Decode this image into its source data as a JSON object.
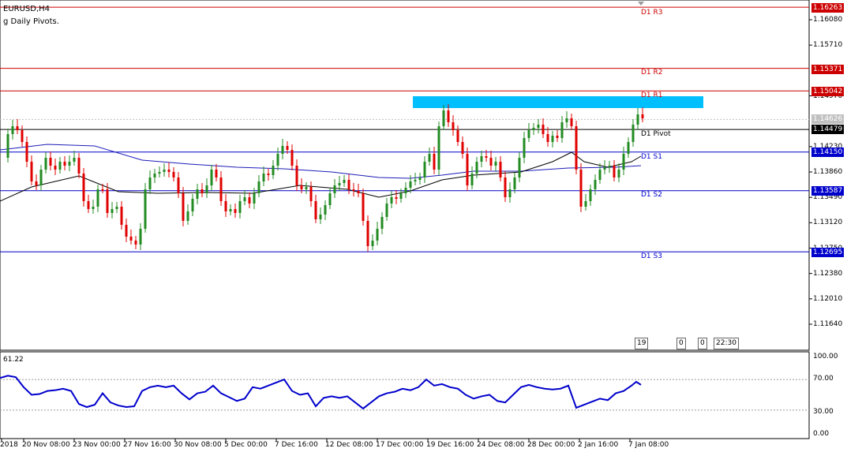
{
  "header": {
    "symbol": "EURUSD,H4",
    "indicator": "g Daily Pivots."
  },
  "colors": {
    "bull": "#228B22",
    "bear": "#E00000",
    "pivot_resistance": "#CC0000",
    "pivot_support": "#0000CC",
    "pivot_main": "#000000",
    "ma_slow": "#1C1CB8",
    "ma_fast": "#000000",
    "highlight_zone": "#00BFFF",
    "oscillator": "#0000CC"
  },
  "price_axis": {
    "ticks": [
      "1.16080",
      "1.15710",
      "1.14970",
      "1.14230",
      "1.13860",
      "1.13490",
      "1.13120",
      "1.12750",
      "1.12380",
      "1.12010",
      "1.11640"
    ]
  },
  "pivots": [
    {
      "name": "D1 R3",
      "price": "1.16263",
      "type": "resistance"
    },
    {
      "name": "D1 R2",
      "price": "1.15371",
      "type": "resistance"
    },
    {
      "name": "D1 R1",
      "price": "1.15042",
      "type": "resistance"
    },
    {
      "name": "D1 Pivot",
      "price": "1.14479",
      "type": "main"
    },
    {
      "name": "D1 S1",
      "price": "1.14150",
      "type": "support"
    },
    {
      "name": "D1 S2",
      "price": "1.13587",
      "type": "support"
    },
    {
      "name": "D1 S3",
      "price": "1.12695",
      "type": "support"
    }
  ],
  "current_price": "1.14626",
  "time_axis": {
    "labels": [
      "2018",
      "20 Nov 08:00",
      "23 Nov 00:00",
      "27 Nov 16:00",
      "30 Nov 08:00",
      "5 Dec 00:00",
      "7 Dec 16:00",
      "12 Dec 08:00",
      "17 Dec 00:00",
      "19 Dec 16:00",
      "24 Dec 08:00",
      "28 Dec 00:00",
      "2 Jan 16:00",
      "7 Jan 08:00"
    ]
  },
  "oscillator": {
    "value_text": "61.22",
    "levels": [
      "100.00",
      "70.00",
      "30.00",
      "0.00"
    ]
  },
  "clock": {
    "boxes": [
      "19",
      "0",
      "0",
      "22:30"
    ]
  }
}
